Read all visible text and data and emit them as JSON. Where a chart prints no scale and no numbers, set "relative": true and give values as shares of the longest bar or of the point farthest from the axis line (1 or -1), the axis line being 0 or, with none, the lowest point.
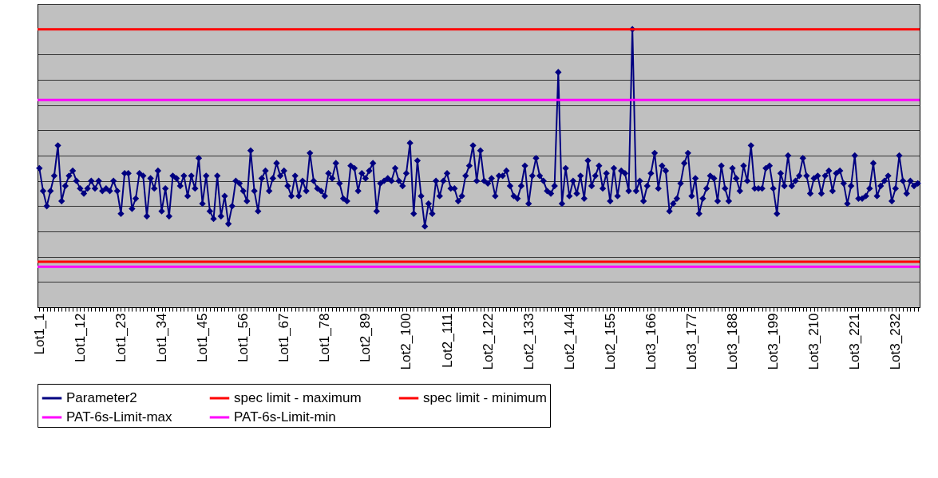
{
  "chart_data": {
    "type": "line",
    "relative": true,
    "grid": "y",
    "legend": "bottom",
    "marker": "diamond",
    "categories": [
      "Lot1_1",
      null,
      null,
      null,
      null,
      null,
      null,
      null,
      null,
      null,
      null,
      "Lot1_12",
      null,
      null,
      null,
      null,
      null,
      null,
      null,
      null,
      null,
      null,
      "Lot1_23",
      null,
      null,
      null,
      null,
      null,
      null,
      null,
      null,
      null,
      null,
      "Lot1_34",
      null,
      null,
      null,
      null,
      null,
      null,
      null,
      null,
      null,
      null,
      "Lot1_45",
      null,
      null,
      null,
      null,
      null,
      null,
      null,
      null,
      null,
      null,
      "Lot1_56",
      null,
      null,
      null,
      null,
      null,
      null,
      null,
      null,
      null,
      null,
      "Lot1_67",
      null,
      null,
      null,
      null,
      null,
      null,
      null,
      null,
      null,
      null,
      "Lot1_78",
      null,
      null,
      null,
      null,
      null,
      null,
      null,
      null,
      null,
      null,
      "Lot2_89",
      null,
      null,
      null,
      null,
      null,
      null,
      null,
      null,
      null,
      null,
      "Lot2_100",
      null,
      null,
      null,
      null,
      null,
      null,
      null,
      null,
      null,
      null,
      "Lot2_111",
      null,
      null,
      null,
      null,
      null,
      null,
      null,
      null,
      null,
      null,
      "Lot2_122",
      null,
      null,
      null,
      null,
      null,
      null,
      null,
      null,
      null,
      null,
      "Lot2_133",
      null,
      null,
      null,
      null,
      null,
      null,
      null,
      null,
      null,
      null,
      "Lot2_144",
      null,
      null,
      null,
      null,
      null,
      null,
      null,
      null,
      null,
      null,
      "Lot2_155",
      null,
      null,
      null,
      null,
      null,
      null,
      null,
      null,
      null,
      null,
      "Lot3_166",
      null,
      null,
      null,
      null,
      null,
      null,
      null,
      null,
      null,
      null,
      "Lot3_177",
      null,
      null,
      null,
      null,
      null,
      null,
      null,
      null,
      null,
      null,
      "Lot3_188",
      null,
      null,
      null,
      null,
      null,
      null,
      null,
      null,
      null,
      null,
      "Lot3_199",
      null,
      null,
      null,
      null,
      null,
      null,
      null,
      null,
      null,
      null,
      "Lot3_210",
      null,
      null,
      null,
      null,
      null,
      null,
      null,
      null,
      null,
      null,
      "Lot3_221",
      null,
      null,
      null,
      null,
      null,
      null,
      null,
      null,
      null,
      null,
      "Lot3_232",
      null,
      null,
      null,
      null,
      null,
      null
    ],
    "series": [
      {
        "name": "Parameter2",
        "color": "#000080",
        "values": [
          0.45,
          0.36,
          0.3,
          0.36,
          0.42,
          0.54,
          0.32,
          0.38,
          0.42,
          0.44,
          0.4,
          0.37,
          0.35,
          0.37,
          0.4,
          0.37,
          0.4,
          0.36,
          0.37,
          0.36,
          0.4,
          0.36,
          0.27,
          0.43,
          0.43,
          0.29,
          0.33,
          0.43,
          0.42,
          0.26,
          0.41,
          0.37,
          0.44,
          0.28,
          0.37,
          0.26,
          0.42,
          0.41,
          0.38,
          0.42,
          0.34,
          0.42,
          0.37,
          0.49,
          0.31,
          0.42,
          0.28,
          0.25,
          0.42,
          0.26,
          0.34,
          0.23,
          0.3,
          0.4,
          0.39,
          0.36,
          0.32,
          0.52,
          0.36,
          0.28,
          0.41,
          0.44,
          0.36,
          0.41,
          0.47,
          0.42,
          0.44,
          0.38,
          0.34,
          0.42,
          0.34,
          0.4,
          0.36,
          0.51,
          0.4,
          0.37,
          0.36,
          0.34,
          0.43,
          0.41,
          0.47,
          0.39,
          0.33,
          0.32,
          0.46,
          0.45,
          0.36,
          0.43,
          0.41,
          0.44,
          0.47,
          0.28,
          0.39,
          0.4,
          0.41,
          0.4,
          0.45,
          0.4,
          0.38,
          0.43,
          0.55,
          0.27,
          0.48,
          0.34,
          0.22,
          0.31,
          0.27,
          0.4,
          0.34,
          0.4,
          0.43,
          0.37,
          0.37,
          0.32,
          0.34,
          0.42,
          0.46,
          0.54,
          0.4,
          0.52,
          0.4,
          0.39,
          0.41,
          0.34,
          0.42,
          0.42,
          0.44,
          0.38,
          0.34,
          0.33,
          0.38,
          0.46,
          0.31,
          0.42,
          0.49,
          0.42,
          0.4,
          0.36,
          0.35,
          0.38,
          0.83,
          0.31,
          0.45,
          0.34,
          0.4,
          0.35,
          0.42,
          0.33,
          0.48,
          0.38,
          0.42,
          0.46,
          0.37,
          0.43,
          0.32,
          0.45,
          0.34,
          0.44,
          0.43,
          0.36,
          1.0,
          0.36,
          0.4,
          0.32,
          0.38,
          0.43,
          0.51,
          0.37,
          0.46,
          0.44,
          0.28,
          0.31,
          0.33,
          0.39,
          0.47,
          0.51,
          0.34,
          0.41,
          0.27,
          0.33,
          0.37,
          0.42,
          0.41,
          0.32,
          0.46,
          0.37,
          0.32,
          0.45,
          0.41,
          0.36,
          0.46,
          0.4,
          0.54,
          0.37,
          0.37,
          0.37,
          0.45,
          0.46,
          0.37,
          0.27,
          0.43,
          0.38,
          0.5,
          0.38,
          0.4,
          0.42,
          0.49,
          0.42,
          0.35,
          0.41,
          0.42,
          0.35,
          0.42,
          0.44,
          0.36,
          0.43,
          0.44,
          0.39,
          0.31,
          0.38,
          0.5,
          0.33,
          0.33,
          0.34,
          0.37,
          0.47,
          0.34,
          0.38,
          0.4,
          0.42,
          0.32,
          0.37,
          0.5,
          0.4,
          0.35,
          0.4,
          0.38,
          0.39
        ]
      }
    ],
    "ref_lines": [
      {
        "axis": "y",
        "value": 1.0,
        "label": "spec limit - maximum",
        "color": "#ff0000"
      },
      {
        "axis": "y",
        "value": 0.08,
        "label": "spec limit - minimum",
        "color": "#ff0000"
      },
      {
        "axis": "y",
        "value": 0.72,
        "label": "PAT-6s-Limit-max",
        "color": "#ff00ff"
      },
      {
        "axis": "y",
        "value": 0.06,
        "label": "PAT-6s-Limit-min",
        "color": "#ff00ff"
      }
    ]
  }
}
